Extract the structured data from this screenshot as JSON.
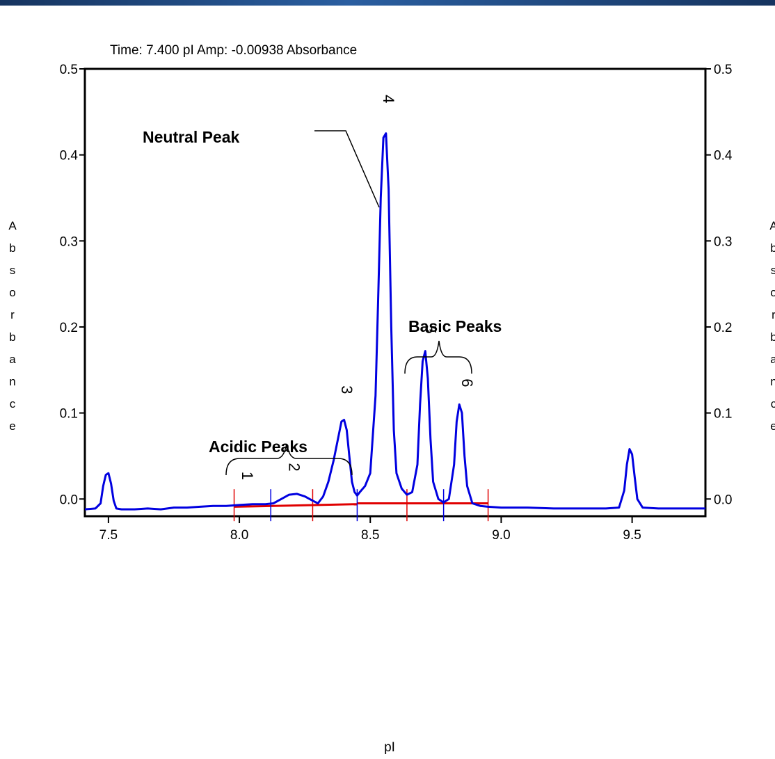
{
  "header": {
    "readout": "Time:  7.400 pI   Amp:  -0.00938 Absorbance"
  },
  "colors": {
    "trace": "#0000e0",
    "baseline": "#e00000",
    "frame": "#000000",
    "top_bar": "#1f4a86"
  },
  "chart_data": {
    "type": "line",
    "title": "",
    "xlabel": "pI",
    "ylabel": "Absorbance",
    "xlim": [
      7.41,
      9.78
    ],
    "ylim": [
      -0.02,
      0.5
    ],
    "x_ticks": [
      "7.5",
      "8.0",
      "8.5",
      "9.0",
      "9.5"
    ],
    "y_ticks": [
      "0.0",
      "0.1",
      "0.2",
      "0.3",
      "0.4",
      "0.5"
    ],
    "y_right_ticks": [
      "0.0",
      "0.1",
      "0.2",
      "0.3",
      "0.4",
      "0.5"
    ],
    "series": [
      {
        "x": [
          7.41,
          7.45,
          7.47,
          7.48,
          7.49,
          7.5,
          7.51,
          7.52,
          7.53,
          7.55,
          7.6,
          7.65,
          7.7,
          7.75,
          7.8,
          7.85,
          7.9,
          7.95,
          8.0,
          8.05,
          8.1,
          8.13,
          8.16,
          8.19,
          8.22,
          8.25,
          8.28,
          8.3,
          8.32,
          8.34,
          8.36,
          8.38,
          8.39,
          8.4,
          8.41,
          8.42,
          8.43,
          8.44,
          8.45,
          8.46,
          8.48,
          8.5,
          8.52,
          8.53,
          8.54,
          8.55,
          8.56,
          8.57,
          8.58,
          8.59,
          8.6,
          8.62,
          8.64,
          8.66,
          8.68,
          8.69,
          8.7,
          8.71,
          8.72,
          8.73,
          8.74,
          8.76,
          8.78,
          8.8,
          8.82,
          8.83,
          8.84,
          8.85,
          8.86,
          8.87,
          8.89,
          8.92,
          8.95,
          9.0,
          9.1,
          9.2,
          9.3,
          9.4,
          9.45,
          9.47,
          9.48,
          9.49,
          9.5,
          9.51,
          9.52,
          9.54,
          9.6,
          9.7,
          9.78
        ],
        "values": [
          -0.012,
          -0.011,
          -0.005,
          0.015,
          0.028,
          0.03,
          0.018,
          -0.002,
          -0.011,
          -0.012,
          -0.012,
          -0.011,
          -0.012,
          -0.01,
          -0.01,
          -0.009,
          -0.008,
          -0.008,
          -0.007,
          -0.006,
          -0.006,
          -0.005,
          0.0,
          0.005,
          0.006,
          0.003,
          -0.002,
          -0.005,
          0.003,
          0.02,
          0.045,
          0.075,
          0.09,
          0.092,
          0.08,
          0.05,
          0.02,
          0.008,
          0.004,
          0.008,
          0.015,
          0.03,
          0.12,
          0.23,
          0.35,
          0.42,
          0.425,
          0.36,
          0.2,
          0.08,
          0.03,
          0.012,
          0.005,
          0.008,
          0.04,
          0.11,
          0.16,
          0.172,
          0.14,
          0.07,
          0.02,
          0.0,
          -0.004,
          0.0,
          0.04,
          0.09,
          0.11,
          0.1,
          0.05,
          0.015,
          -0.005,
          -0.008,
          -0.009,
          -0.01,
          -0.01,
          -0.011,
          -0.011,
          -0.011,
          -0.01,
          0.01,
          0.04,
          0.058,
          0.052,
          0.025,
          0.0,
          -0.01,
          -0.011,
          -0.011,
          -0.011
        ]
      }
    ],
    "baseline_segments": [
      {
        "x": [
          7.98,
          8.45
        ],
        "y": [
          -0.009,
          -0.006
        ]
      },
      {
        "x": [
          8.45,
          8.95
        ],
        "y": [
          -0.005,
          -0.005
        ]
      }
    ],
    "integration_marks": [
      7.98,
      8.12,
      8.28,
      8.45,
      8.64,
      8.78,
      8.95
    ],
    "annotations": {
      "neutral": "Neutral Peak",
      "basic": "Basic Peaks",
      "acidic": "Acidic Peaks"
    },
    "peak_labels": [
      {
        "text": "1",
        "x": 8.01,
        "y": 0.027
      },
      {
        "text": "2",
        "x": 8.19,
        "y": 0.037
      },
      {
        "text": "3",
        "x": 8.39,
        "y": 0.127
      },
      {
        "text": "4",
        "x": 8.55,
        "y": 0.465
      },
      {
        "text": "5",
        "x": 8.71,
        "y": 0.197
      },
      {
        "text": "6",
        "x": 8.85,
        "y": 0.135
      }
    ]
  }
}
